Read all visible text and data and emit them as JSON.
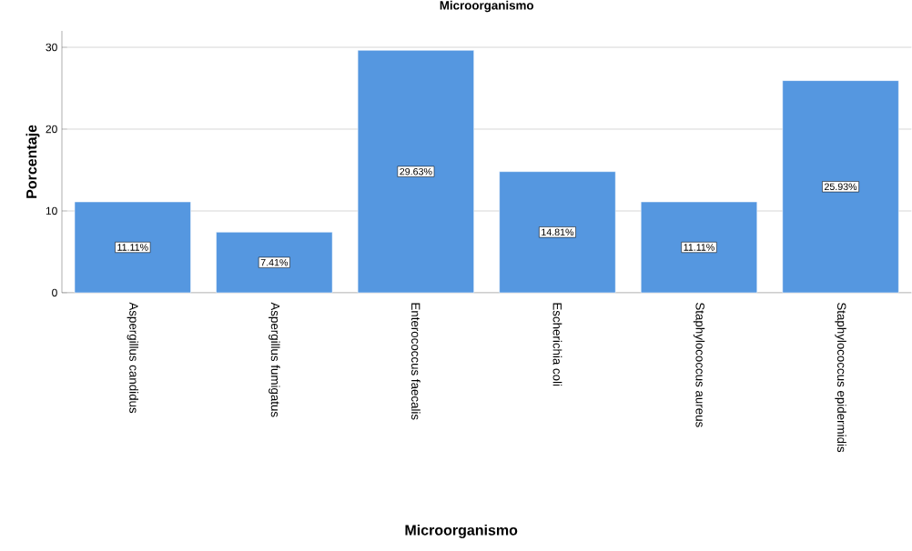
{
  "chart_data": {
    "type": "bar",
    "title": "Microorganismo",
    "xlabel": "Microorganismo",
    "ylabel": "Porcentaje",
    "categories": [
      "Aspergillus candidus",
      "Aspergillus fumigatus",
      "Enterococcus faecalis",
      "Escherichia coli",
      "Staphylococcus aureus",
      "Staphylococcus epidermidis"
    ],
    "values": [
      11.11,
      7.41,
      29.63,
      14.81,
      11.11,
      25.93
    ],
    "value_labels": [
      "11.11%",
      "7.41%",
      "29.63%",
      "14.81%",
      "11.11%",
      "25.93%"
    ],
    "color": "#5597e0",
    "ylim": [
      0,
      32
    ],
    "yticks": [
      0,
      10,
      20,
      30
    ],
    "grid": "y"
  }
}
